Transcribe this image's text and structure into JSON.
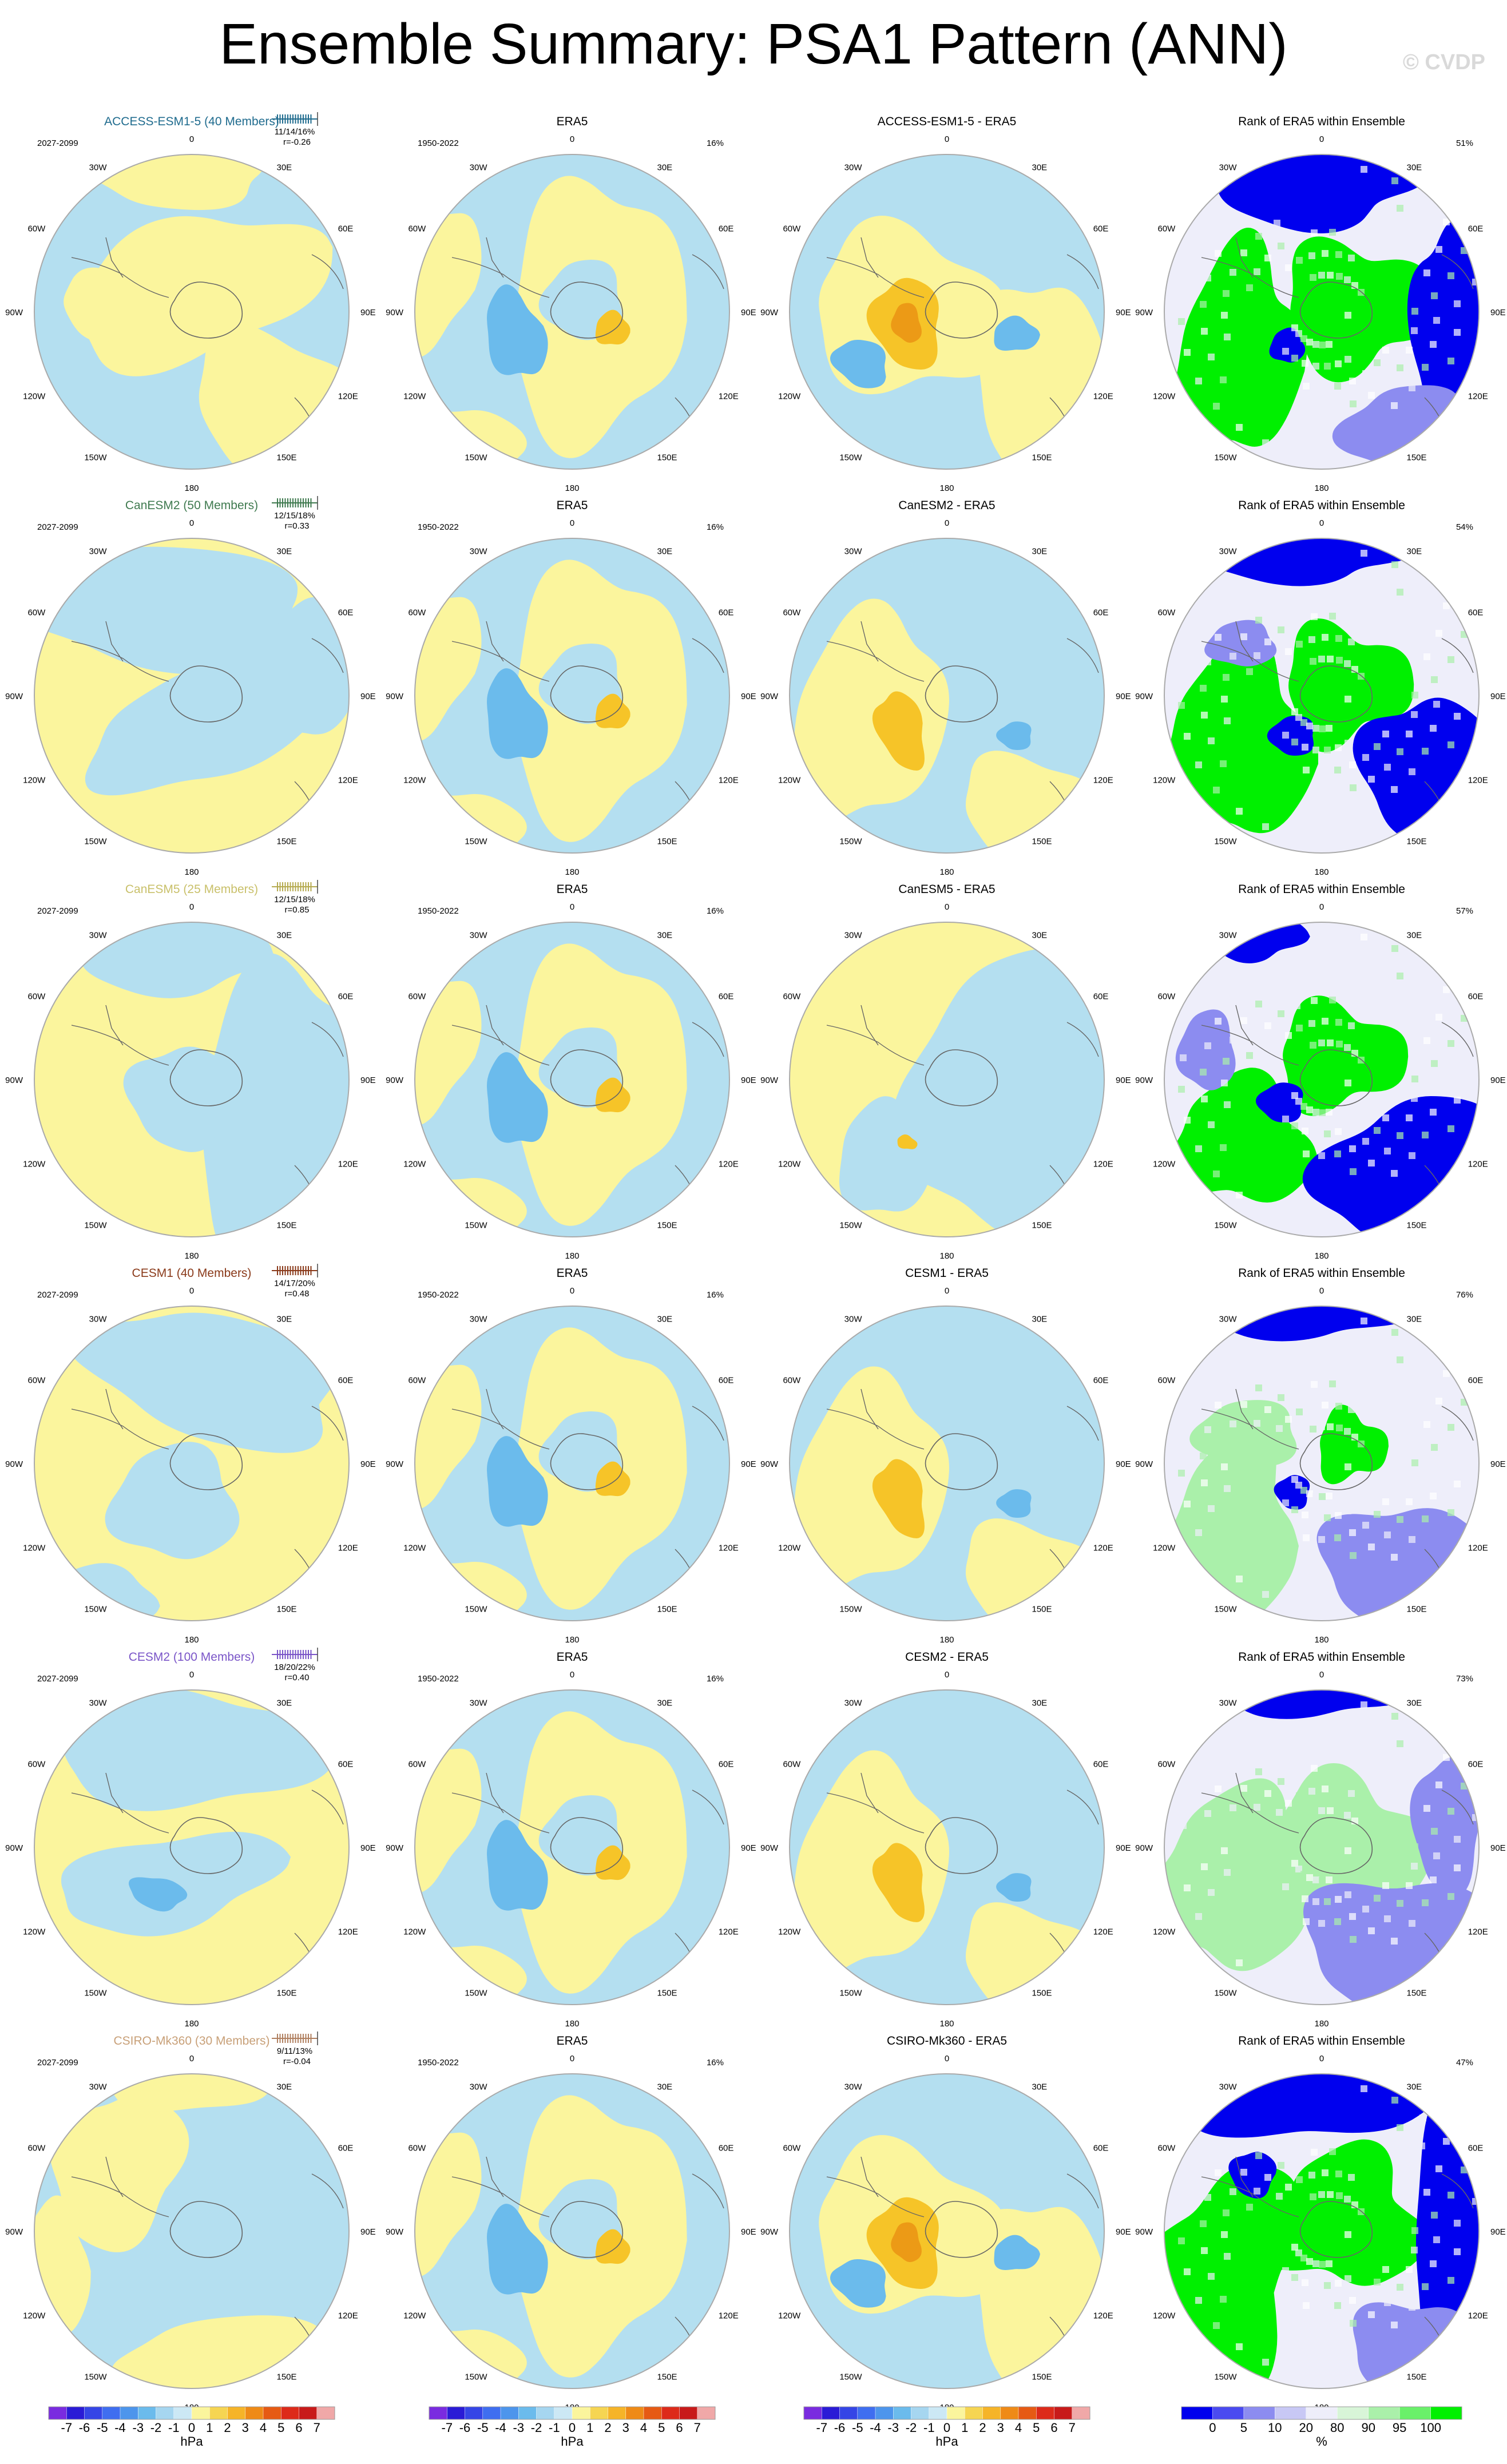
{
  "page": {
    "title": "Ensemble Summary: PSA1 Pattern (ANN)",
    "watermark": "© CVDP"
  },
  "colors": {
    "pos1": "#fbf59d",
    "neg1": "#b4dff0",
    "pos2": "#f6c428",
    "neg2": "#6bbbec",
    "pos3": "#ec9a16",
    "neg3": "#2f8ee5",
    "rank_hi": "#00f000",
    "rank_hi2": "#aaf0aa",
    "rank_lo": "#0000ee",
    "rank_lo2": "#8c8cf0",
    "rank_mid": "#eeeefa",
    "coast": "#666666",
    "rim": "#aaaaaa"
  },
  "labels": {
    "lon": [
      "0",
      "30E",
      "60E",
      "90E",
      "120E",
      "150E",
      "180",
      "150W",
      "120W",
      "90W",
      "60W",
      "30W"
    ]
  },
  "chart_data": [
    {
      "row": 0,
      "panel": "model",
      "type": "polar-contour",
      "title": "ACCESS-ESM1-5 (40 Members)",
      "title_color": "#1f6b8e",
      "period": "2027-2099",
      "stats": "11/14/16%",
      "r": "r=-0.26",
      "whisker_color": "#1f6b8e",
      "pattern": "access"
    },
    {
      "row": 0,
      "panel": "obs",
      "type": "polar-contour",
      "title": "ERA5",
      "period": "1950-2022",
      "pct": "16%",
      "pattern": "era5"
    },
    {
      "row": 0,
      "panel": "diff",
      "type": "polar-contour",
      "title": "ACCESS-ESM1-5 - ERA5",
      "pattern": "diff_strong"
    },
    {
      "row": 0,
      "panel": "rank",
      "type": "heatmap",
      "title": "Rank of ERA5 within Ensemble",
      "pct": "51%",
      "pattern": "rank_a"
    },
    {
      "row": 1,
      "panel": "model",
      "type": "polar-contour",
      "title": "CanESM2 (50 Members)",
      "title_color": "#3f7a4f",
      "period": "2027-2099",
      "stats": "12/15/18%",
      "r": "r=0.33",
      "whisker_color": "#3f7a4f",
      "pattern": "canesm2"
    },
    {
      "row": 1,
      "panel": "obs",
      "type": "polar-contour",
      "title": "ERA5",
      "period": "1950-2022",
      "pct": "16%",
      "pattern": "era5"
    },
    {
      "row": 1,
      "panel": "diff",
      "type": "polar-contour",
      "title": "CanESM2 - ERA5",
      "pattern": "diff_med"
    },
    {
      "row": 1,
      "panel": "rank",
      "type": "heatmap",
      "title": "Rank of ERA5 within Ensemble",
      "pct": "54%",
      "pattern": "rank_b"
    },
    {
      "row": 2,
      "panel": "model",
      "type": "polar-contour",
      "title": "CanESM5 (25 Members)",
      "title_color": "#c9c06a",
      "period": "2027-2099",
      "stats": "12/15/18%",
      "r": "r=0.85",
      "whisker_color": "#b5aa50",
      "pattern": "canesm5"
    },
    {
      "row": 2,
      "panel": "obs",
      "type": "polar-contour",
      "title": "ERA5",
      "period": "1950-2022",
      "pct": "16%",
      "pattern": "era5"
    },
    {
      "row": 2,
      "panel": "diff",
      "type": "polar-contour",
      "title": "CanESM5 - ERA5",
      "pattern": "diff_weak"
    },
    {
      "row": 2,
      "panel": "rank",
      "type": "heatmap",
      "title": "Rank of ERA5 within Ensemble",
      "pct": "57%",
      "pattern": "rank_c"
    },
    {
      "row": 3,
      "panel": "model",
      "type": "polar-contour",
      "title": "CESM1 (40 Members)",
      "title_color": "#8a3a1a",
      "period": "2027-2099",
      "stats": "14/17/20%",
      "r": "r=0.48",
      "whisker_color": "#8a3a1a",
      "pattern": "cesm1"
    },
    {
      "row": 3,
      "panel": "obs",
      "type": "polar-contour",
      "title": "ERA5",
      "period": "1950-2022",
      "pct": "16%",
      "pattern": "era5"
    },
    {
      "row": 3,
      "panel": "diff",
      "type": "polar-contour",
      "title": "CESM1 - ERA5",
      "pattern": "diff_med"
    },
    {
      "row": 3,
      "panel": "rank",
      "type": "heatmap",
      "title": "Rank of ERA5 within Ensemble",
      "pct": "76%",
      "pattern": "rank_d"
    },
    {
      "row": 4,
      "panel": "model",
      "type": "polar-contour",
      "title": "CESM2 (100 Members)",
      "title_color": "#7a55c8",
      "period": "2027-2099",
      "stats": "18/20/22%",
      "r": "r=0.40",
      "whisker_color": "#7a55c8",
      "pattern": "cesm2"
    },
    {
      "row": 4,
      "panel": "obs",
      "type": "polar-contour",
      "title": "ERA5",
      "period": "1950-2022",
      "pct": "16%",
      "pattern": "era5"
    },
    {
      "row": 4,
      "panel": "diff",
      "type": "polar-contour",
      "title": "CESM2 - ERA5",
      "pattern": "diff_med"
    },
    {
      "row": 4,
      "panel": "rank",
      "type": "heatmap",
      "title": "Rank of ERA5 within Ensemble",
      "pct": "73%",
      "pattern": "rank_e"
    },
    {
      "row": 5,
      "panel": "model",
      "type": "polar-contour",
      "title": "CSIRO-Mk360 (30 Members)",
      "title_color": "#c8a078",
      "period": "2027-2099",
      "stats": "9/11/13%",
      "r": "r=-0.04",
      "whisker_color": "#b08060",
      "pattern": "csiro"
    },
    {
      "row": 5,
      "panel": "obs",
      "type": "polar-contour",
      "title": "ERA5",
      "period": "1950-2022",
      "pct": "16%",
      "pattern": "era5"
    },
    {
      "row": 5,
      "panel": "diff",
      "type": "polar-contour",
      "title": "CSIRO-Mk360 - ERA5",
      "pattern": "diff_strong"
    },
    {
      "row": 5,
      "panel": "rank",
      "type": "heatmap",
      "title": "Rank of ERA5 within Ensemble",
      "pct": "47%",
      "pattern": "rank_f"
    }
  ],
  "colorbars": [
    {
      "kind": "hpa",
      "ticks": [
        "-7",
        "-6",
        "-5",
        "-4",
        "-3",
        "-2",
        "-1",
        "0",
        "1",
        "2",
        "3",
        "4",
        "5",
        "6",
        "7"
      ],
      "unit": "hPa",
      "colors": [
        "#7a2be0",
        "#2a1bd6",
        "#3545e6",
        "#3f6ef0",
        "#4d95ec",
        "#6bbbec",
        "#a6d6f0",
        "#cce8f5",
        "#fbf59d",
        "#f6d552",
        "#f6b428",
        "#ef8a17",
        "#e65a14",
        "#dd2a1a",
        "#c81a1a",
        "#f0a8a8"
      ]
    },
    {
      "kind": "pct",
      "ticks": [
        "0",
        "5",
        "10",
        "20",
        "80",
        "90",
        "95",
        "100"
      ],
      "unit": "%",
      "colors": [
        "#0000ee",
        "#4a4af0",
        "#8c8cf0",
        "#c8c8f5",
        "#eeeefa",
        "#d8f5d8",
        "#aaf0aa",
        "#6af06a",
        "#00f000"
      ]
    }
  ]
}
